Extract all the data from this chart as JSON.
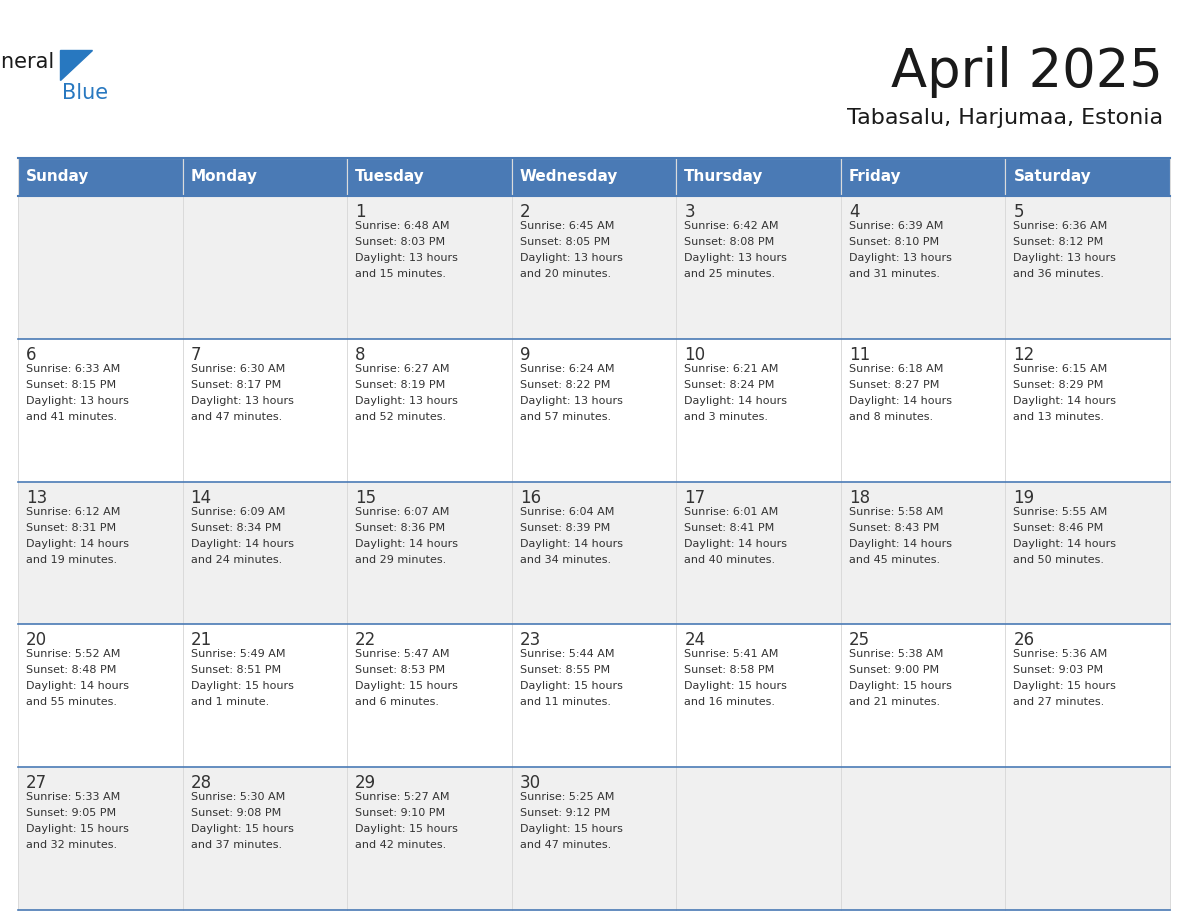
{
  "title": "April 2025",
  "subtitle": "Tabasalu, Harjumaa, Estonia",
  "days_of_week": [
    "Sunday",
    "Monday",
    "Tuesday",
    "Wednesday",
    "Thursday",
    "Friday",
    "Saturday"
  ],
  "header_color": "#4a7ab5",
  "header_text_color": "#ffffff",
  "cell_bg_even": "#f0f0f0",
  "cell_bg_odd": "#ffffff",
  "line_color": "#4a7ab5",
  "text_color": "#333333",
  "logo_general_color": "#1a1a1a",
  "logo_blue_color": "#2878c0",
  "title_fontsize": 38,
  "subtitle_fontsize": 16,
  "dayname_fontsize": 11,
  "day_num_fontsize": 12,
  "cell_text_fontsize": 8,
  "calendar": [
    [
      null,
      null,
      {
        "day": 1,
        "sunrise": "6:48 AM",
        "sunset": "8:03 PM",
        "daylight": "13 hours\nand 15 minutes."
      },
      {
        "day": 2,
        "sunrise": "6:45 AM",
        "sunset": "8:05 PM",
        "daylight": "13 hours\nand 20 minutes."
      },
      {
        "day": 3,
        "sunrise": "6:42 AM",
        "sunset": "8:08 PM",
        "daylight": "13 hours\nand 25 minutes."
      },
      {
        "day": 4,
        "sunrise": "6:39 AM",
        "sunset": "8:10 PM",
        "daylight": "13 hours\nand 31 minutes."
      },
      {
        "day": 5,
        "sunrise": "6:36 AM",
        "sunset": "8:12 PM",
        "daylight": "13 hours\nand 36 minutes."
      }
    ],
    [
      {
        "day": 6,
        "sunrise": "6:33 AM",
        "sunset": "8:15 PM",
        "daylight": "13 hours\nand 41 minutes."
      },
      {
        "day": 7,
        "sunrise": "6:30 AM",
        "sunset": "8:17 PM",
        "daylight": "13 hours\nand 47 minutes."
      },
      {
        "day": 8,
        "sunrise": "6:27 AM",
        "sunset": "8:19 PM",
        "daylight": "13 hours\nand 52 minutes."
      },
      {
        "day": 9,
        "sunrise": "6:24 AM",
        "sunset": "8:22 PM",
        "daylight": "13 hours\nand 57 minutes."
      },
      {
        "day": 10,
        "sunrise": "6:21 AM",
        "sunset": "8:24 PM",
        "daylight": "14 hours\nand 3 minutes."
      },
      {
        "day": 11,
        "sunrise": "6:18 AM",
        "sunset": "8:27 PM",
        "daylight": "14 hours\nand 8 minutes."
      },
      {
        "day": 12,
        "sunrise": "6:15 AM",
        "sunset": "8:29 PM",
        "daylight": "14 hours\nand 13 minutes."
      }
    ],
    [
      {
        "day": 13,
        "sunrise": "6:12 AM",
        "sunset": "8:31 PM",
        "daylight": "14 hours\nand 19 minutes."
      },
      {
        "day": 14,
        "sunrise": "6:09 AM",
        "sunset": "8:34 PM",
        "daylight": "14 hours\nand 24 minutes."
      },
      {
        "day": 15,
        "sunrise": "6:07 AM",
        "sunset": "8:36 PM",
        "daylight": "14 hours\nand 29 minutes."
      },
      {
        "day": 16,
        "sunrise": "6:04 AM",
        "sunset": "8:39 PM",
        "daylight": "14 hours\nand 34 minutes."
      },
      {
        "day": 17,
        "sunrise": "6:01 AM",
        "sunset": "8:41 PM",
        "daylight": "14 hours\nand 40 minutes."
      },
      {
        "day": 18,
        "sunrise": "5:58 AM",
        "sunset": "8:43 PM",
        "daylight": "14 hours\nand 45 minutes."
      },
      {
        "day": 19,
        "sunrise": "5:55 AM",
        "sunset": "8:46 PM",
        "daylight": "14 hours\nand 50 minutes."
      }
    ],
    [
      {
        "day": 20,
        "sunrise": "5:52 AM",
        "sunset": "8:48 PM",
        "daylight": "14 hours\nand 55 minutes."
      },
      {
        "day": 21,
        "sunrise": "5:49 AM",
        "sunset": "8:51 PM",
        "daylight": "15 hours\nand 1 minute."
      },
      {
        "day": 22,
        "sunrise": "5:47 AM",
        "sunset": "8:53 PM",
        "daylight": "15 hours\nand 6 minutes."
      },
      {
        "day": 23,
        "sunrise": "5:44 AM",
        "sunset": "8:55 PM",
        "daylight": "15 hours\nand 11 minutes."
      },
      {
        "day": 24,
        "sunrise": "5:41 AM",
        "sunset": "8:58 PM",
        "daylight": "15 hours\nand 16 minutes."
      },
      {
        "day": 25,
        "sunrise": "5:38 AM",
        "sunset": "9:00 PM",
        "daylight": "15 hours\nand 21 minutes."
      },
      {
        "day": 26,
        "sunrise": "5:36 AM",
        "sunset": "9:03 PM",
        "daylight": "15 hours\nand 27 minutes."
      }
    ],
    [
      {
        "day": 27,
        "sunrise": "5:33 AM",
        "sunset": "9:05 PM",
        "daylight": "15 hours\nand 32 minutes."
      },
      {
        "day": 28,
        "sunrise": "5:30 AM",
        "sunset": "9:08 PM",
        "daylight": "15 hours\nand 37 minutes."
      },
      {
        "day": 29,
        "sunrise": "5:27 AM",
        "sunset": "9:10 PM",
        "daylight": "15 hours\nand 42 minutes."
      },
      {
        "day": 30,
        "sunrise": "5:25 AM",
        "sunset": "9:12 PM",
        "daylight": "15 hours\nand 47 minutes."
      },
      null,
      null,
      null
    ]
  ]
}
